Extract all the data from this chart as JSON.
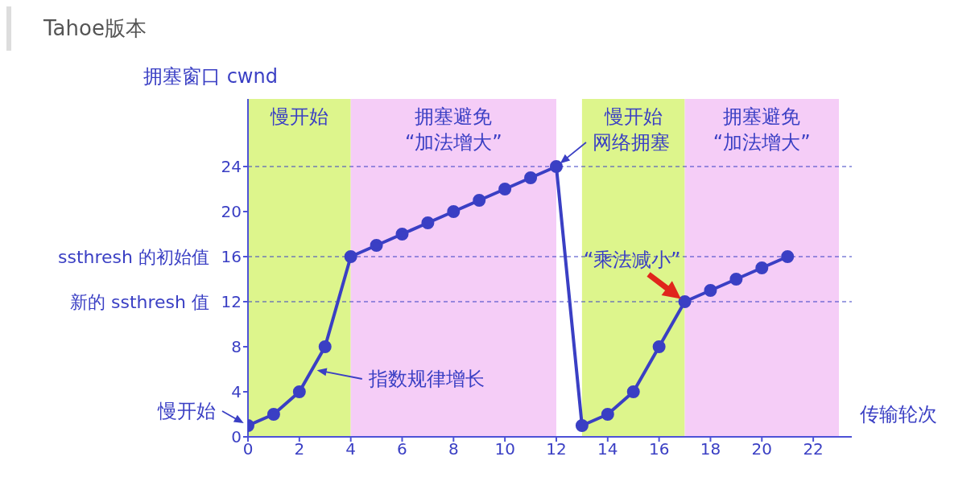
{
  "chart_data": {
    "type": "line",
    "title": "Tahoe版本",
    "ylabel": "拥塞窗口 cwnd",
    "xlabel": "传输轮次",
    "x": [
      0,
      1,
      2,
      3,
      4,
      5,
      6,
      7,
      8,
      9,
      10,
      11,
      12,
      13,
      14,
      15,
      16,
      17,
      18,
      19,
      20,
      21
    ],
    "series": [
      {
        "color": "#3a3fc4",
        "values": [
          1,
          2,
          4,
          8,
          16,
          17,
          18,
          19,
          20,
          21,
          22,
          23,
          24,
          1,
          2,
          4,
          8,
          12,
          13,
          14,
          15,
          16
        ]
      }
    ],
    "xlim": [
      0,
      23.5
    ],
    "xticks": [
      0,
      2,
      4,
      6,
      8,
      10,
      12,
      14,
      16,
      18,
      20,
      22
    ],
    "ylim": [
      0,
      30
    ],
    "yticks": [
      0,
      4,
      8,
      12,
      16,
      20,
      24
    ],
    "marker": "circle",
    "grid": false,
    "legend": false,
    "ref_lines": [
      {
        "axis": "y",
        "value": 24,
        "label": null,
        "line_style": "dashed"
      },
      {
        "axis": "y",
        "value": 16,
        "label": "ssthresh 的初始值",
        "line_style": "dashed"
      },
      {
        "axis": "y",
        "value": 12,
        "label": "新的 ssthresh 值",
        "line_style": "dashed"
      }
    ],
    "bands": [
      {
        "axis": "x",
        "from": 0,
        "to": 4,
        "label": "慢开始",
        "color": "#ddf58c"
      },
      {
        "axis": "x",
        "from": 4,
        "to": 12,
        "label": "拥塞避免\n“加法增大”",
        "color": "#f5cdf7"
      },
      {
        "axis": "x",
        "from": 13,
        "to": 17,
        "label": "慢开始",
        "color": "#ddf58c"
      },
      {
        "axis": "x",
        "from": 17,
        "to": 23,
        "label": "拥塞避免\n“加法增大”",
        "color": "#f5cdf7"
      }
    ],
    "annotations": [
      {
        "text": "网络拥塞",
        "x": 12,
        "y": 24
      },
      {
        "text": "指数规律增长",
        "x": 2.5,
        "y": 6
      },
      {
        "text": "慢开始",
        "x": 0,
        "y": 1
      },
      {
        "text": "“乘法减小”",
        "x": 17,
        "y": 12
      }
    ]
  }
}
